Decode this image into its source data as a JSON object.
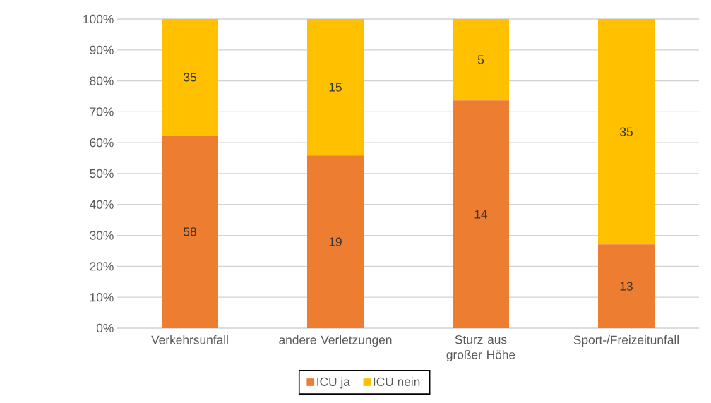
{
  "chart_data": {
    "type": "bar",
    "stacked": true,
    "categories": [
      "Verkehrsunfall",
      "andere Verletzungen",
      "Sturz aus großer Höhe",
      "Sport-/Freizeitunfall"
    ],
    "series": [
      {
        "name": "ICU ja",
        "color": "#ed7d31",
        "values": [
          62.4,
          55.9,
          73.7,
          27.1
        ]
      },
      {
        "name": "ICU nein",
        "color": "#ffc000",
        "values": [
          37.6,
          44.1,
          26.3,
          72.9
        ]
      }
    ],
    "annotations": [
      "58",
      "19",
      "14",
      "13",
      "35",
      "15",
      "5",
      "35"
    ],
    "ylim": [
      0,
      100
    ],
    "yticks": [
      {
        "value": 0,
        "label": "0%"
      },
      {
        "value": 10,
        "label": "10%"
      },
      {
        "value": 20,
        "label": "20%"
      },
      {
        "value": 30,
        "label": "30%"
      },
      {
        "value": 40,
        "label": "40%"
      },
      {
        "value": 50,
        "label": "50%"
      },
      {
        "value": 60,
        "label": "60%"
      },
      {
        "value": 70,
        "label": "70%"
      },
      {
        "value": 80,
        "label": "80%"
      },
      {
        "value": 90,
        "label": "90%"
      },
      {
        "value": 100,
        "label": "100%"
      }
    ],
    "grid": "y",
    "legend": "bottom"
  }
}
